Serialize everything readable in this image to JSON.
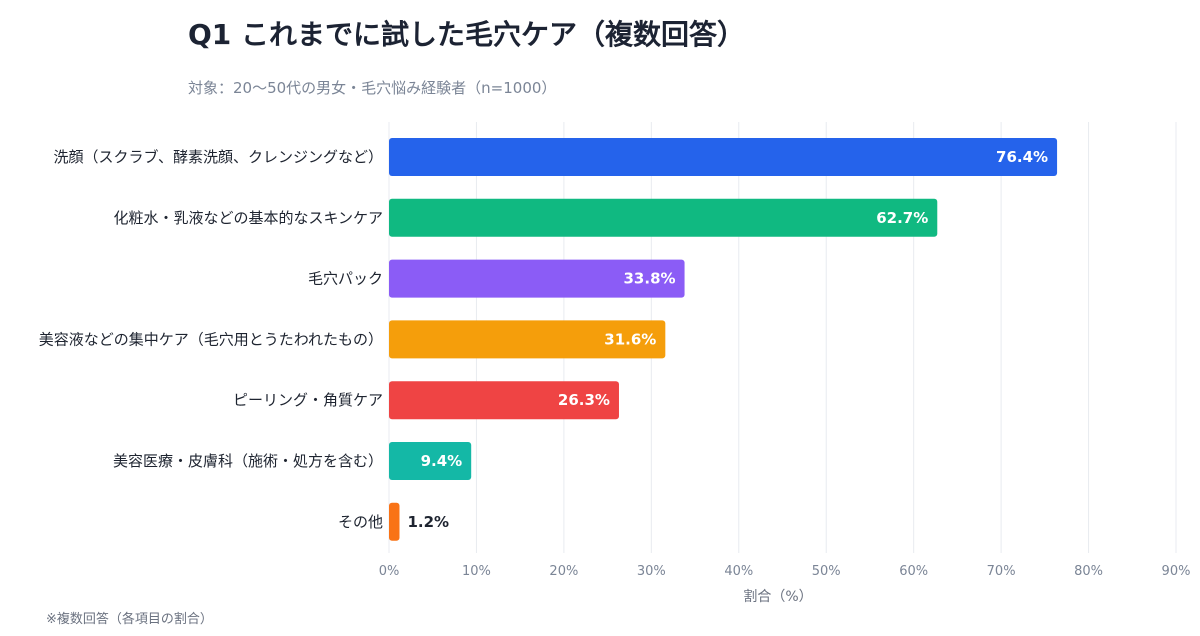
{
  "title": "Q1 これまでに試した毛穴ケア（複数回答）",
  "subtitle": "対象：20〜50代の男女・毛穴悩み経験者（n=1000）",
  "footnote": "※複数回答（各項目の割合）",
  "chart_data": {
    "type": "bar",
    "orientation": "horizontal",
    "categories": [
      "洗顔（スクラブ、酵素洗顔、クレンジングなど）",
      "化粧水・乳液などの基本的なスキンケア",
      "毛穴パック",
      "美容液などの集中ケア（毛穴用とうたわれたもの）",
      "ピーリング・角質ケア",
      "美容医療・皮膚科（施術・処方を含む）",
      "その他"
    ],
    "values": [
      76.4,
      62.7,
      33.8,
      31.6,
      26.3,
      9.4,
      1.2
    ],
    "value_labels": [
      "76.4%",
      "62.7%",
      "33.8%",
      "31.6%",
      "26.3%",
      "9.4%",
      "1.2%"
    ],
    "colors": [
      "#2563eb",
      "#10b981",
      "#8b5cf6",
      "#f59e0b",
      "#ef4444",
      "#14b8a6",
      "#f97316"
    ],
    "xlabel": "割合（%）",
    "ylabel": "",
    "xlim": [
      0,
      90
    ],
    "xticks": [
      0,
      10,
      20,
      30,
      40,
      50,
      60,
      70,
      80,
      90
    ],
    "xtick_labels": [
      "0%",
      "10%",
      "20%",
      "30%",
      "40%",
      "50%",
      "60%",
      "70%",
      "80%",
      "90%"
    ],
    "grid": true,
    "legend": "none"
  }
}
